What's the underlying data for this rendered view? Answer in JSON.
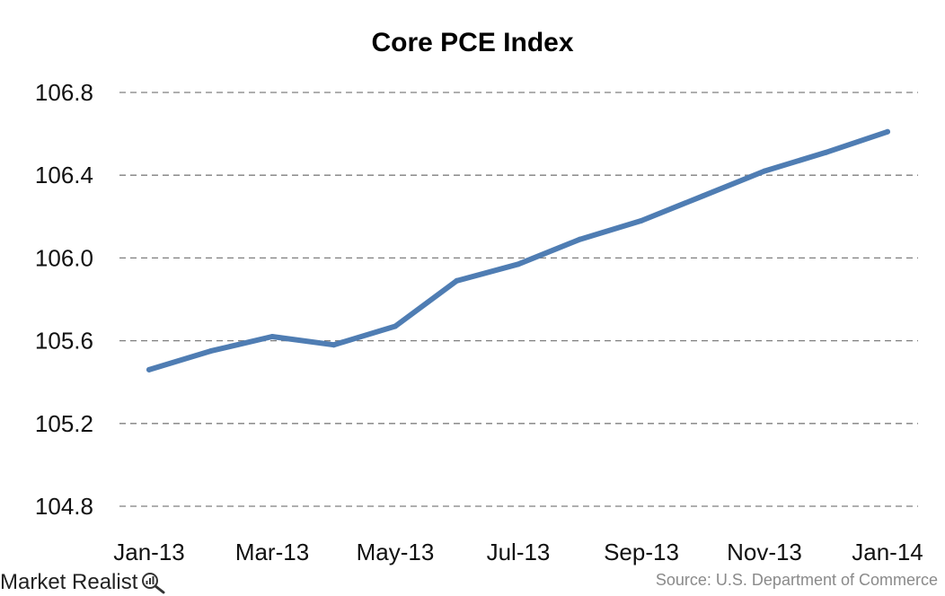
{
  "chart_data": {
    "type": "line",
    "title": "Core PCE Index",
    "xlabel": "",
    "ylabel": "",
    "ylim": [
      104.8,
      106.8
    ],
    "yticks": [
      "106.8",
      "106.4",
      "106.0",
      "105.6",
      "105.2",
      "104.8"
    ],
    "xtick_labels": [
      "Jan-13",
      "Mar-13",
      "May-13",
      "Jul-13",
      "Sep-13",
      "Nov-13",
      "Jan-14"
    ],
    "categories": [
      "Jan-13",
      "Feb-13",
      "Mar-13",
      "Apr-13",
      "May-13",
      "Jun-13",
      "Jul-13",
      "Aug-13",
      "Sep-13",
      "Oct-13",
      "Nov-13",
      "Dec-13",
      "Jan-14"
    ],
    "series": [
      {
        "values": [
          105.46,
          105.55,
          105.62,
          105.58,
          105.67,
          105.89,
          105.97,
          106.09,
          106.18,
          106.3,
          106.42,
          106.51,
          106.61
        ]
      }
    ],
    "grid": true,
    "series_color": "#4f7db3"
  },
  "footer": {
    "brand": "Market Realist",
    "brand_icon": "magnifier-chart-icon",
    "source": "Source: U.S. Department of Commerce"
  }
}
